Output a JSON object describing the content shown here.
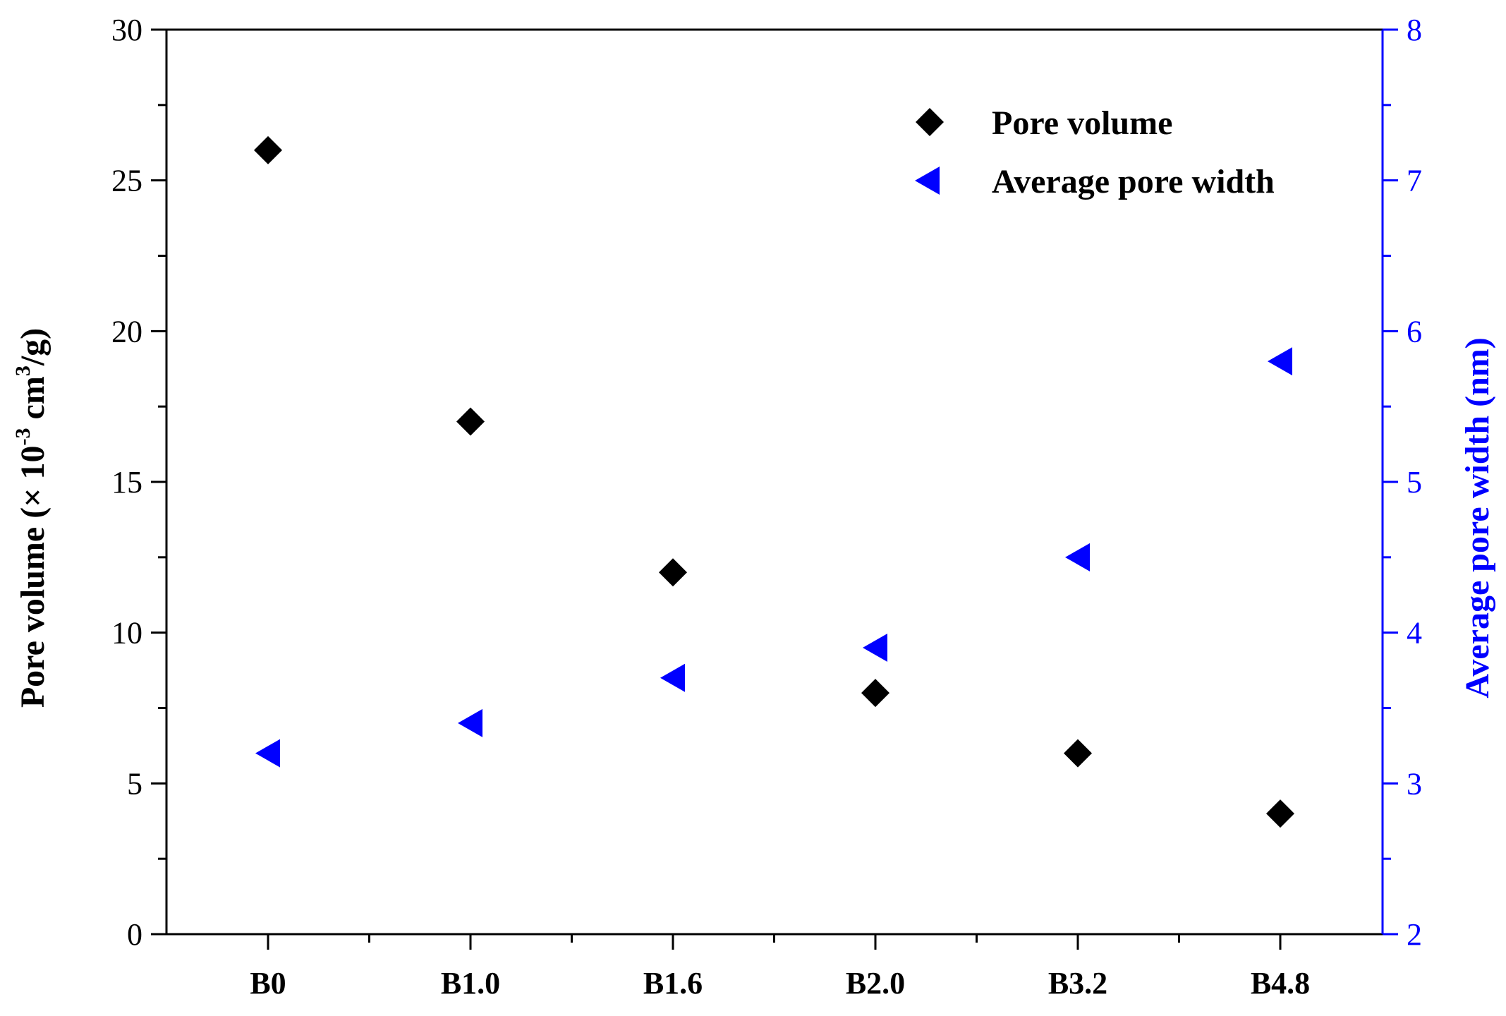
{
  "chart_data": {
    "type": "scatter",
    "title": "",
    "categories": [
      "B0",
      "B1.0",
      "B1.6",
      "B2.0",
      "B3.2",
      "B4.8"
    ],
    "xlabel": "",
    "left_axis": {
      "label_prefix": "Pore volume (× 10",
      "label_exp": "-3",
      "label_mid": " cm",
      "label_exp2": "3",
      "label_suffix": "/g)",
      "ylim": [
        0,
        30
      ],
      "ticks": [
        0,
        5,
        10,
        15,
        20,
        25,
        30
      ],
      "color": "#000000"
    },
    "right_axis": {
      "label": "Average pore width (nm)",
      "ylim": [
        2,
        8
      ],
      "ticks": [
        2,
        3,
        4,
        5,
        6,
        7,
        8
      ],
      "color": "#0000ff"
    },
    "series": [
      {
        "name": "Pore volume",
        "axis": "left",
        "marker": "diamond",
        "color": "#000000",
        "values": [
          26,
          17,
          12,
          8,
          6,
          4
        ]
      },
      {
        "name": "Average pore width",
        "axis": "right",
        "marker": "triangle-left",
        "color": "#0000ff",
        "values": [
          3.2,
          3.4,
          3.7,
          3.9,
          4.5,
          5.8
        ]
      }
    ],
    "legend_position": "top-right",
    "grid": false
  }
}
